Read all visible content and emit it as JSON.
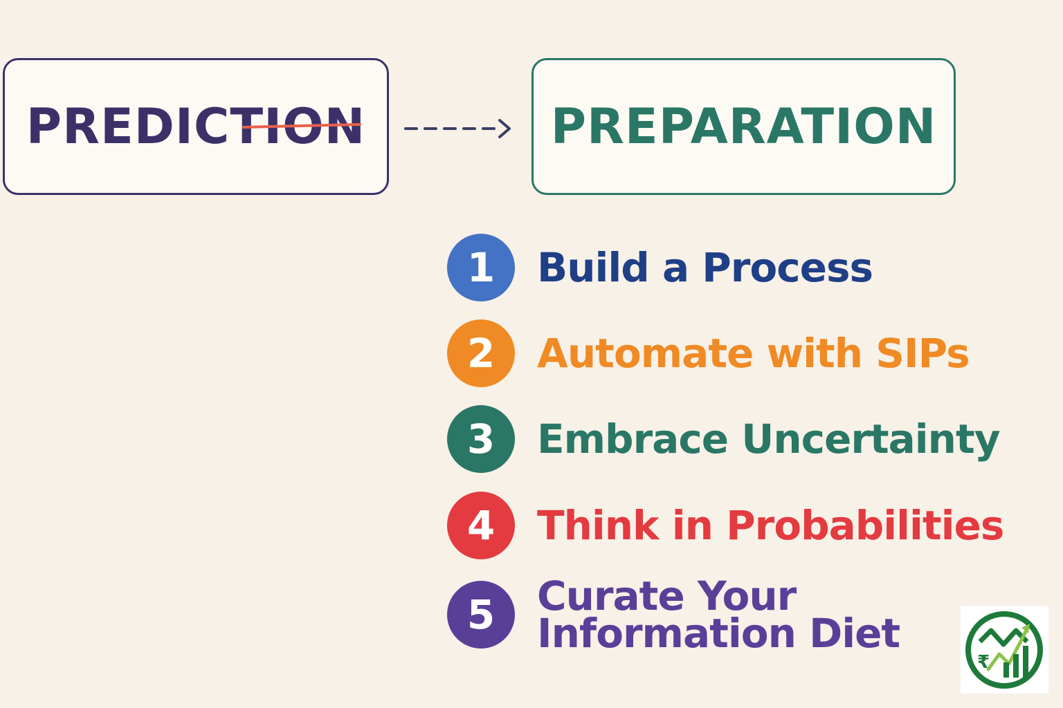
{
  "boxes": {
    "prediction": "PREDICTION",
    "preparation": "PREPARATION"
  },
  "steps": [
    {
      "number": "1",
      "label": "Build a Process",
      "color": "#4472c4",
      "text_color": "#1f3f86"
    },
    {
      "number": "2",
      "label": "Automate with SIPs",
      "color": "#f08a24",
      "text_color": "#f08a24"
    },
    {
      "number": "3",
      "label": "Embrace Uncertainty",
      "color": "#2a7766",
      "text_color": "#2a7766"
    },
    {
      "number": "4",
      "label": "Think in Probabilities",
      "color": "#e33b40",
      "text_color": "#e33b40"
    },
    {
      "number": "5",
      "label": "Curate Your Information Diet",
      "color": "#5a3f98",
      "text_color": "#5a3f98"
    }
  ],
  "colors": {
    "background": "#f7f1e8",
    "prediction": "#3b3168",
    "preparation": "#2a7766",
    "strike": "#e8614a"
  },
  "logo": {
    "icon": "money-chart-logo",
    "colors": [
      "#1e7a3a",
      "#8bc34a"
    ]
  }
}
